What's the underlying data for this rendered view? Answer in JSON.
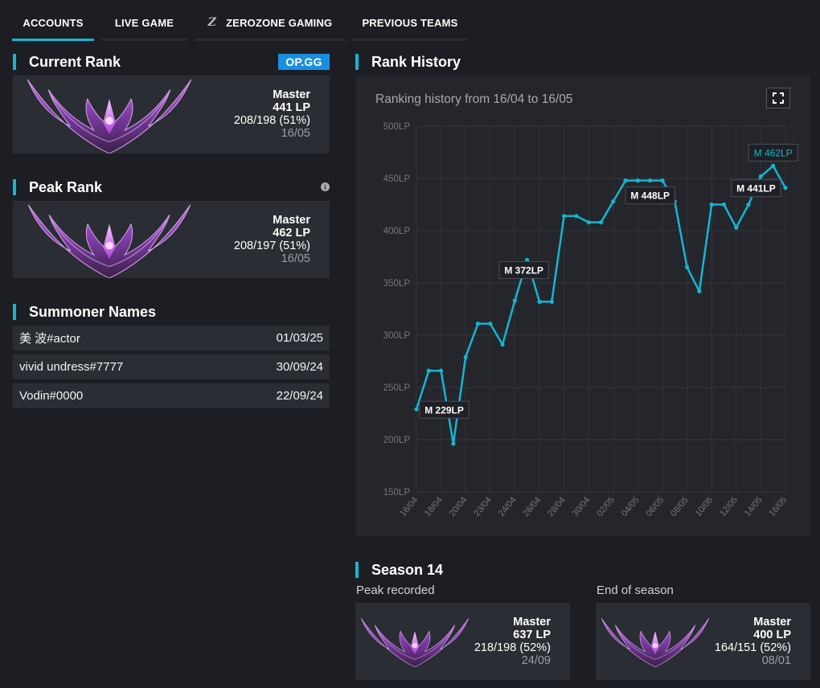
{
  "tabs": [
    {
      "label": "ACCOUNTS",
      "active": true
    },
    {
      "label": "LIVE GAME",
      "active": false
    },
    {
      "label": "ZEROZONE GAMING",
      "active": false,
      "logo": "Z"
    },
    {
      "label": "PREVIOUS TEAMS",
      "active": false
    }
  ],
  "current_rank": {
    "title": "Current Rank",
    "source_badge": "OP.GG",
    "tier": "Master",
    "lp": "441 LP",
    "record": "208/198 (51%)",
    "date": "16/05"
  },
  "peak_rank": {
    "title": "Peak Rank",
    "info_icon": "i",
    "tier": "Master",
    "lp": "462 LP",
    "record": "208/197 (51%)",
    "date": "16/05"
  },
  "summoner_names": {
    "title": "Summoner Names",
    "items": [
      {
        "name": "美 波#actor",
        "date": "01/03/25"
      },
      {
        "name": "vivid undress#7777",
        "date": "30/09/24"
      },
      {
        "name": "Vodin#0000",
        "date": "22/09/24"
      }
    ]
  },
  "rank_history": {
    "title": "Rank History",
    "subtitle": "Ranking history from 16/04 to 16/05"
  },
  "season": {
    "title": "Season 14",
    "peak": {
      "label": "Peak recorded",
      "tier": "Master",
      "lp": "637 LP",
      "record": "218/198 (52%)",
      "date": "24/09"
    },
    "end": {
      "label": "End of season",
      "tier": "Master",
      "lp": "400 LP",
      "record": "164/151 (52%)",
      "date": "08/01"
    }
  },
  "colors": {
    "accent": "#16b5d0",
    "opgg": "#1a8fe0",
    "panel": "#2a2d33",
    "background": "#1c1e23"
  },
  "chart_data": {
    "type": "line",
    "ylim": [
      150,
      500
    ],
    "y_ticks": [
      "150LP",
      "200LP",
      "250LP",
      "300LP",
      "350LP",
      "400LP",
      "450LP",
      "500LP"
    ],
    "y_tick_values": [
      150,
      200,
      250,
      300,
      350,
      400,
      450,
      500
    ],
    "x_tick_labels": [
      "16/04",
      "18/04",
      "20/04",
      "23/04",
      "24/04",
      "26/04",
      "28/04",
      "30/04",
      "02/05",
      "04/05",
      "06/05",
      "08/05",
      "10/05",
      "12/05",
      "14/05",
      "16/05"
    ],
    "grid": true,
    "points": [
      229,
      266,
      266,
      196,
      279,
      311,
      311,
      291,
      333,
      372,
      332,
      332,
      414,
      414,
      408,
      408,
      428,
      448,
      448,
      448,
      448,
      428,
      365,
      342,
      425,
      425,
      403,
      425,
      452,
      462,
      441
    ],
    "annotations": [
      {
        "index": 0,
        "label": "M 229LP"
      },
      {
        "index": 9,
        "label": "M 372LP"
      },
      {
        "index": 19,
        "label": "M 448LP"
      },
      {
        "index": 29,
        "label": "M 462LP",
        "highlight": true
      },
      {
        "index": 30,
        "label": "M 441LP"
      }
    ]
  }
}
